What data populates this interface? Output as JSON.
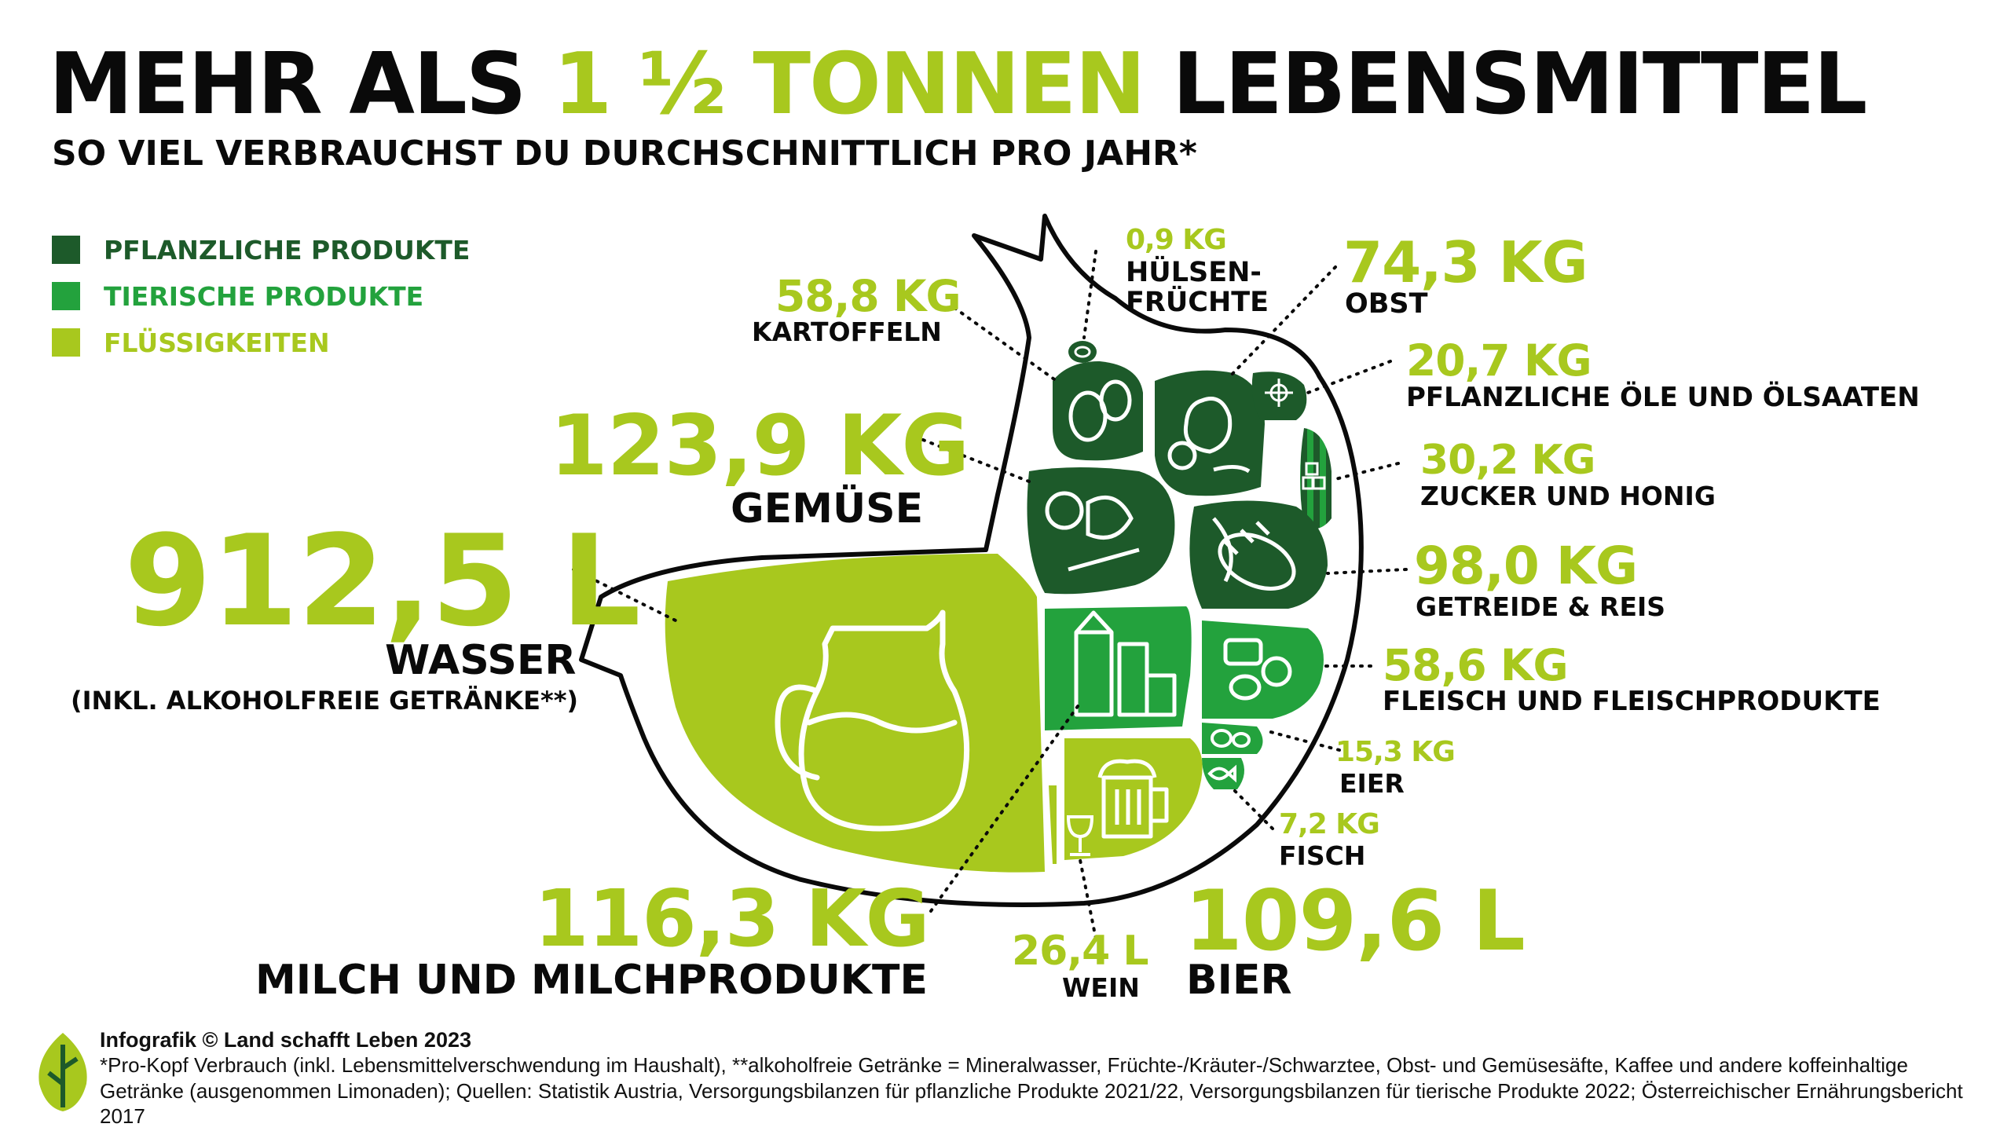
{
  "title": {
    "part1": "MEHR ALS ",
    "highlight": "1 ½ TONNEN",
    "part2": " LEBENSMITTEL"
  },
  "subtitle": "SO VIEL VERBRAUCHST DU DURCHSCHNITTLICH PRO JAHR*",
  "legend": [
    {
      "label": "PFLANZLICHE PRODUKTE",
      "color": "#1d5a2a"
    },
    {
      "label": "TIERISCHE PRODUKTE",
      "color": "#23a23d"
    },
    {
      "label": "FLÜSSIGKEITEN",
      "color": "#a8c81e"
    }
  ],
  "items": {
    "huelsenfruechte": {
      "value": "0,9 KG",
      "label1": "HÜLSEN-",
      "label2": "FRÜCHTE"
    },
    "obst": {
      "value": "74,3 KG",
      "label": "OBST"
    },
    "kartoffeln": {
      "value": "58,8 KG",
      "label": "KARTOFFELN"
    },
    "oele": {
      "value": "20,7 KG",
      "label": "PFLANZLICHE ÖLE UND ÖLSAATEN"
    },
    "gemuese": {
      "value": "123,9 KG",
      "label": "GEMÜSE"
    },
    "zucker": {
      "value": "30,2 KG",
      "label": "ZUCKER UND HONIG"
    },
    "wasser": {
      "value": "912,5 L",
      "label": "WASSER",
      "sublabel": "(INKL. ALKOHOLFREIE GETRÄNKE**)"
    },
    "getreide": {
      "value": "98,0 KG",
      "label": "GETREIDE & REIS"
    },
    "fleisch": {
      "value": "58,6 KG",
      "label": "FLEISCH UND FLEISCHPRODUKTE"
    },
    "eier": {
      "value": "15,3 KG",
      "label": "EIER"
    },
    "fisch": {
      "value": "7,2 KG",
      "label": "FISCH"
    },
    "milch": {
      "value": "116,3 KG",
      "label": "MILCH UND MILCHPRODUKTE"
    },
    "wein": {
      "value": "26,4 L",
      "label": "WEIN"
    },
    "bier": {
      "value": "109,6 L",
      "label": "BIER"
    }
  },
  "footer": {
    "credit": "Infografik © Land schafft Leben 2023",
    "note": "*Pro-Kopf Verbrauch (inkl. Lebensmittelverschwendung im Haushalt), **alkoholfreie Getränke = Mineralwasser, Früchte-/Kräuter-/Schwarztee, Obst- und Gemüsesäfte, Kaffee und andere koffeinhaltige Getränke (ausgenommen Limonaden); Quellen: Statistik Austria, Versorgungsbilanzen für pflanzliche Produkte 2021/22, Versorgungsbilanzen für tierische Produkte 2022; Österreichischer Ernährungsbericht 2017"
  },
  "colors": {
    "dark_green": "#1d5a2a",
    "mid_green": "#23a23d",
    "lime": "#a8c81e"
  }
}
